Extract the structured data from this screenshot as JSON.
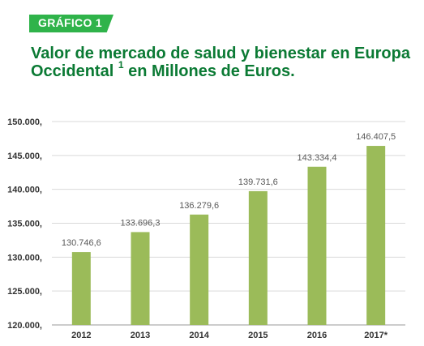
{
  "header": {
    "tag": "GRÁFICO 1",
    "title_main": "Valor de mercado de salud y bienestar en Europa Occidental",
    "title_sup": "1",
    "title_tail": " en Millones de Euros."
  },
  "colors": {
    "tag_bg": "#2fb34a",
    "title": "#0b7a34",
    "bar": "#9bbb59",
    "grid": "#d9d9d9",
    "tick_text": "#333333",
    "value_text": "#595959"
  },
  "chart_data": {
    "type": "bar",
    "categories": [
      "2012",
      "2013",
      "2014",
      "2015",
      "2016",
      "2017*"
    ],
    "values": [
      130746.6,
      133696.3,
      136279.6,
      139731.6,
      143334.4,
      146407.5
    ],
    "value_labels": [
      "130.746,6",
      "133.696,3",
      "136.279,6",
      "139.731,6",
      "143.334,4",
      "146.407,5"
    ],
    "yticks": [
      120000,
      125000,
      130000,
      135000,
      140000,
      145000,
      150000
    ],
    "ytick_labels": [
      "120.000,",
      "125.000,",
      "130.000,",
      "135.000,",
      "140.000,",
      "145.000,",
      "150.000,"
    ],
    "ylim": [
      120000,
      150000
    ],
    "grid": true,
    "legend": "none"
  }
}
